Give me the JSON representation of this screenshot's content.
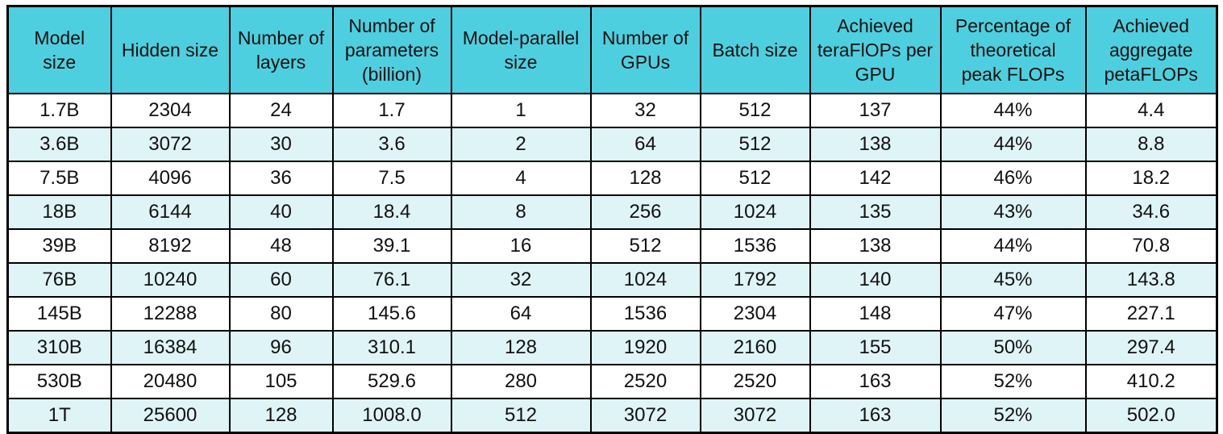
{
  "colors": {
    "header_bg": "#4ecfdf",
    "row_bg": "#ffffff",
    "row_alt_bg": "#dff4f7",
    "border": "#000000",
    "text": "#111111"
  },
  "chart_data": {
    "type": "table",
    "columns": [
      "Model size",
      "Hidden size",
      "Number of layers",
      "Number of parameters (billion)",
      "Model-parallel size",
      "Number of GPUs",
      "Batch size",
      "Achieved teraFlOPs per GPU",
      "Percentage of theoretical peak FLOPs",
      "Achieved aggregate petaFLOPs"
    ],
    "column_display": [
      "Model\nsize",
      "Hidden size",
      "Number of\nlayers",
      "Number of\nparameters\n(billion)",
      "Model-parallel\nsize",
      "Number of\nGPUs",
      "Batch size",
      "Achieved\nteraFlOPs per\nGPU",
      "Percentage of\ntheoretical\npeak FLOPs",
      "Achieved\naggregate\npetaFLOPs"
    ],
    "rows": [
      [
        "1.7B",
        "2304",
        "24",
        "1.7",
        "1",
        "32",
        "512",
        "137",
        "44%",
        "4.4"
      ],
      [
        "3.6B",
        "3072",
        "30",
        "3.6",
        "2",
        "64",
        "512",
        "138",
        "44%",
        "8.8"
      ],
      [
        "7.5B",
        "4096",
        "36",
        "7.5",
        "4",
        "128",
        "512",
        "142",
        "46%",
        "18.2"
      ],
      [
        "18B",
        "6144",
        "40",
        "18.4",
        "8",
        "256",
        "1024",
        "135",
        "43%",
        "34.6"
      ],
      [
        "39B",
        "8192",
        "48",
        "39.1",
        "16",
        "512",
        "1536",
        "138",
        "44%",
        "70.8"
      ],
      [
        "76B",
        "10240",
        "60",
        "76.1",
        "32",
        "1024",
        "1792",
        "140",
        "45%",
        "143.8"
      ],
      [
        "145B",
        "12288",
        "80",
        "145.6",
        "64",
        "1536",
        "2304",
        "148",
        "47%",
        "227.1"
      ],
      [
        "310B",
        "16384",
        "96",
        "310.1",
        "128",
        "1920",
        "2160",
        "155",
        "50%",
        "297.4"
      ],
      [
        "530B",
        "20480",
        "105",
        "529.6",
        "280",
        "2520",
        "2520",
        "163",
        "52%",
        "410.2"
      ],
      [
        "1T",
        "25600",
        "128",
        "1008.0",
        "512",
        "3072",
        "3072",
        "163",
        "52%",
        "502.0"
      ]
    ]
  }
}
